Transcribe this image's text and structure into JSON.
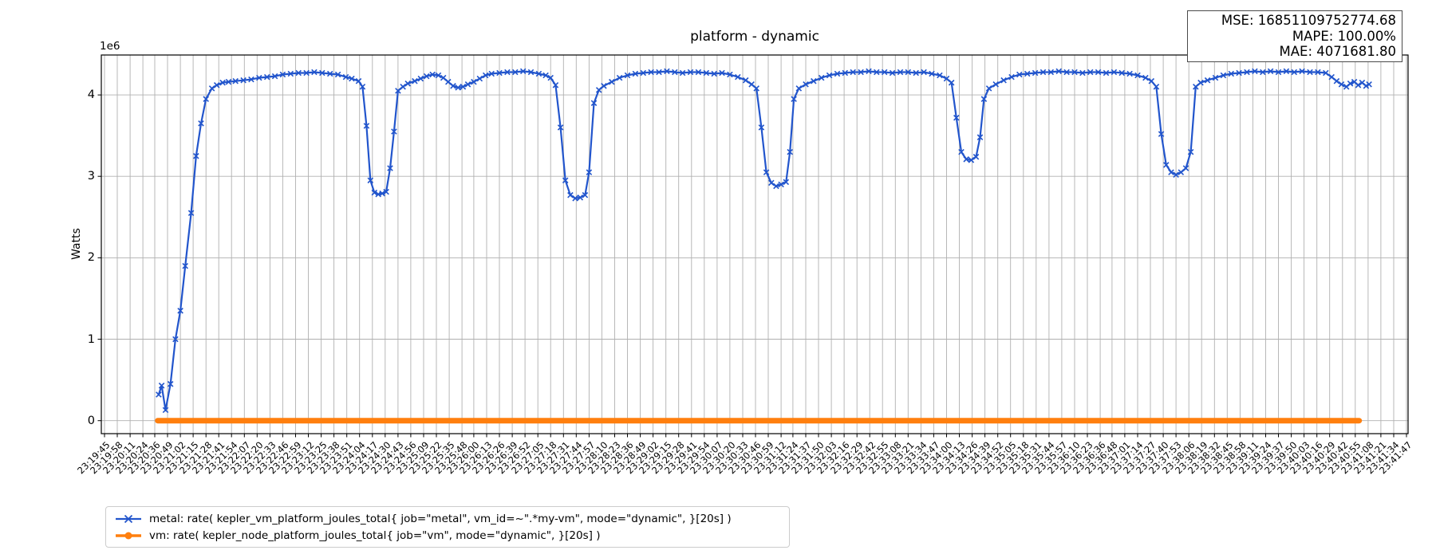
{
  "figure": {
    "title": "platform - dynamic"
  },
  "stats_box": {
    "lines": [
      "MSE: 16851109752774.68",
      "MAPE: 100.00%",
      "MAE: 4071681.80"
    ]
  },
  "legend": {
    "entries": [
      {
        "label": "metal: rate( kepler_vm_platform_joules_total{ job=\"metal\", vm_id=~\".*my-vm\", mode=\"dynamic\", }[20s] )",
        "color": "#2255cc",
        "marker": "x"
      },
      {
        "label": "vm: rate( kepler_node_platform_joules_total{ job=\"vm\", mode=\"dynamic\", }[20s] )",
        "color": "#ff7f0e",
        "marker": "circle"
      }
    ]
  },
  "chart_data": {
    "type": "line",
    "title": "platform - dynamic",
    "xlabel": "",
    "ylabel": "Watts",
    "y_offset_text": "1e6",
    "y_ticks": [
      0,
      1,
      2,
      3,
      4
    ],
    "ylim": [
      -160000,
      4490000
    ],
    "grid": true,
    "legend_position": "below-left",
    "x_unit": "time of day (HH:MM:SS), seconds measured from first tick 23:19:45",
    "x_tick_labels": [
      "23:19:45",
      "23:19:58",
      "23:20:11",
      "23:20:24",
      "23:20:36",
      "23:20:49",
      "23:21:02",
      "23:21:15",
      "23:21:28",
      "23:21:41",
      "23:21:54",
      "23:22:07",
      "23:22:20",
      "23:22:33",
      "23:22:46",
      "23:22:59",
      "23:23:12",
      "23:23:25",
      "23:23:38",
      "23:23:51",
      "23:24:04",
      "23:24:17",
      "23:24:30",
      "23:24:43",
      "23:24:56",
      "23:25:09",
      "23:25:22",
      "23:25:35",
      "23:25:48",
      "23:26:00",
      "23:26:13",
      "23:26:26",
      "23:26:39",
      "23:26:52",
      "23:27:05",
      "23:27:18",
      "23:27:31",
      "23:27:44",
      "23:27:57",
      "23:28:10",
      "23:28:23",
      "23:28:36",
      "23:28:49",
      "23:29:02",
      "23:29:15",
      "23:29:28",
      "23:29:41",
      "23:29:54",
      "23:30:07",
      "23:30:20",
      "23:30:33",
      "23:30:46",
      "23:30:59",
      "23:31:12",
      "23:31:24",
      "23:31:37",
      "23:31:50",
      "23:32:03",
      "23:32:16",
      "23:32:29",
      "23:32:42",
      "23:32:55",
      "23:33:08",
      "23:33:21",
      "23:33:34",
      "23:33:47",
      "23:34:00",
      "23:34:13",
      "23:34:26",
      "23:34:39",
      "23:34:52",
      "23:35:05",
      "23:35:18",
      "23:35:31",
      "23:35:44",
      "23:35:57",
      "23:36:10",
      "23:36:23",
      "23:36:36",
      "23:36:48",
      "23:37:01",
      "23:37:14",
      "23:37:27",
      "23:37:40",
      "23:37:53",
      "23:38:06",
      "23:38:19",
      "23:38:32",
      "23:38:45",
      "23:38:58",
      "23:39:11",
      "23:39:24",
      "23:39:37",
      "23:39:50",
      "23:40:03",
      "23:40:16",
      "23:40:29",
      "23:40:42",
      "23:40:55",
      "23:41:08",
      "23:41:21",
      "23:41:34",
      "23:41:47"
    ],
    "series": [
      {
        "name": "metal",
        "color": "#2255cc",
        "marker": "x",
        "linewidth": 2.2,
        "points": [
          [
            55,
            320000
          ],
          [
            58,
            430000
          ],
          [
            62,
            130000
          ],
          [
            67,
            450000
          ],
          [
            72,
            1000000
          ],
          [
            77,
            1350000
          ],
          [
            82,
            1900000
          ],
          [
            88,
            2550000
          ],
          [
            93,
            3250000
          ],
          [
            98,
            3650000
          ],
          [
            103,
            3950000
          ],
          [
            109,
            4080000
          ],
          [
            114,
            4120000
          ],
          [
            120,
            4150000
          ],
          [
            126,
            4160000
          ],
          [
            133,
            4170000
          ],
          [
            141,
            4180000
          ],
          [
            149,
            4190000
          ],
          [
            157,
            4210000
          ],
          [
            165,
            4220000
          ],
          [
            173,
            4230000
          ],
          [
            181,
            4250000
          ],
          [
            189,
            4260000
          ],
          [
            197,
            4270000
          ],
          [
            205,
            4270000
          ],
          [
            213,
            4280000
          ],
          [
            221,
            4270000
          ],
          [
            229,
            4260000
          ],
          [
            237,
            4250000
          ],
          [
            245,
            4220000
          ],
          [
            251,
            4200000
          ],
          [
            258,
            4170000
          ],
          [
            262,
            4100000
          ],
          [
            266,
            3620000
          ],
          [
            270,
            2950000
          ],
          [
            274,
            2800000
          ],
          [
            278,
            2780000
          ],
          [
            282,
            2790000
          ],
          [
            286,
            2810000
          ],
          [
            290,
            3100000
          ],
          [
            294,
            3550000
          ],
          [
            298,
            4050000
          ],
          [
            303,
            4100000
          ],
          [
            308,
            4140000
          ],
          [
            315,
            4170000
          ],
          [
            321,
            4200000
          ],
          [
            327,
            4230000
          ],
          [
            333,
            4250000
          ],
          [
            339,
            4240000
          ],
          [
            344,
            4210000
          ],
          [
            349,
            4160000
          ],
          [
            354,
            4110000
          ],
          [
            359,
            4090000
          ],
          [
            364,
            4100000
          ],
          [
            369,
            4130000
          ],
          [
            375,
            4160000
          ],
          [
            381,
            4200000
          ],
          [
            387,
            4240000
          ],
          [
            393,
            4260000
          ],
          [
            401,
            4270000
          ],
          [
            409,
            4280000
          ],
          [
            417,
            4280000
          ],
          [
            425,
            4290000
          ],
          [
            433,
            4280000
          ],
          [
            441,
            4260000
          ],
          [
            448,
            4240000
          ],
          [
            453,
            4210000
          ],
          [
            458,
            4120000
          ],
          [
            463,
            3600000
          ],
          [
            468,
            2950000
          ],
          [
            473,
            2770000
          ],
          [
            478,
            2730000
          ],
          [
            483,
            2740000
          ],
          [
            488,
            2770000
          ],
          [
            492,
            3050000
          ],
          [
            497,
            3900000
          ],
          [
            502,
            4060000
          ],
          [
            507,
            4110000
          ],
          [
            515,
            4160000
          ],
          [
            523,
            4210000
          ],
          [
            531,
            4240000
          ],
          [
            539,
            4260000
          ],
          [
            547,
            4270000
          ],
          [
            555,
            4280000
          ],
          [
            563,
            4280000
          ],
          [
            571,
            4290000
          ],
          [
            579,
            4280000
          ],
          [
            587,
            4270000
          ],
          [
            595,
            4280000
          ],
          [
            603,
            4280000
          ],
          [
            611,
            4270000
          ],
          [
            619,
            4260000
          ],
          [
            627,
            4270000
          ],
          [
            635,
            4250000
          ],
          [
            643,
            4220000
          ],
          [
            651,
            4180000
          ],
          [
            657,
            4130000
          ],
          [
            662,
            4080000
          ],
          [
            667,
            3600000
          ],
          [
            672,
            3050000
          ],
          [
            677,
            2920000
          ],
          [
            682,
            2880000
          ],
          [
            687,
            2900000
          ],
          [
            692,
            2930000
          ],
          [
            696,
            3300000
          ],
          [
            700,
            3950000
          ],
          [
            705,
            4080000
          ],
          [
            712,
            4130000
          ],
          [
            720,
            4170000
          ],
          [
            728,
            4210000
          ],
          [
            736,
            4240000
          ],
          [
            744,
            4260000
          ],
          [
            752,
            4270000
          ],
          [
            760,
            4280000
          ],
          [
            768,
            4280000
          ],
          [
            776,
            4290000
          ],
          [
            784,
            4280000
          ],
          [
            792,
            4280000
          ],
          [
            800,
            4270000
          ],
          [
            808,
            4280000
          ],
          [
            816,
            4280000
          ],
          [
            824,
            4270000
          ],
          [
            832,
            4280000
          ],
          [
            840,
            4260000
          ],
          [
            848,
            4240000
          ],
          [
            855,
            4200000
          ],
          [
            860,
            4150000
          ],
          [
            865,
            3720000
          ],
          [
            870,
            3300000
          ],
          [
            875,
            3210000
          ],
          [
            880,
            3200000
          ],
          [
            885,
            3240000
          ],
          [
            889,
            3480000
          ],
          [
            893,
            3950000
          ],
          [
            898,
            4080000
          ],
          [
            905,
            4130000
          ],
          [
            913,
            4180000
          ],
          [
            921,
            4220000
          ],
          [
            929,
            4250000
          ],
          [
            937,
            4260000
          ],
          [
            945,
            4270000
          ],
          [
            953,
            4280000
          ],
          [
            961,
            4280000
          ],
          [
            969,
            4290000
          ],
          [
            977,
            4280000
          ],
          [
            985,
            4280000
          ],
          [
            993,
            4270000
          ],
          [
            1001,
            4280000
          ],
          [
            1009,
            4280000
          ],
          [
            1017,
            4270000
          ],
          [
            1025,
            4280000
          ],
          [
            1033,
            4270000
          ],
          [
            1041,
            4260000
          ],
          [
            1049,
            4240000
          ],
          [
            1057,
            4210000
          ],
          [
            1063,
            4170000
          ],
          [
            1068,
            4100000
          ],
          [
            1073,
            3520000
          ],
          [
            1078,
            3140000
          ],
          [
            1083,
            3050000
          ],
          [
            1088,
            3020000
          ],
          [
            1093,
            3050000
          ],
          [
            1098,
            3100000
          ],
          [
            1103,
            3300000
          ],
          [
            1108,
            4100000
          ],
          [
            1113,
            4150000
          ],
          [
            1120,
            4180000
          ],
          [
            1128,
            4210000
          ],
          [
            1136,
            4240000
          ],
          [
            1144,
            4260000
          ],
          [
            1152,
            4270000
          ],
          [
            1160,
            4280000
          ],
          [
            1168,
            4290000
          ],
          [
            1176,
            4280000
          ],
          [
            1184,
            4290000
          ],
          [
            1192,
            4280000
          ],
          [
            1200,
            4290000
          ],
          [
            1208,
            4280000
          ],
          [
            1216,
            4290000
          ],
          [
            1224,
            4280000
          ],
          [
            1232,
            4280000
          ],
          [
            1240,
            4270000
          ],
          [
            1246,
            4220000
          ],
          [
            1251,
            4170000
          ],
          [
            1256,
            4130000
          ],
          [
            1261,
            4100000
          ],
          [
            1265,
            4140000
          ],
          [
            1269,
            4160000
          ],
          [
            1273,
            4120000
          ],
          [
            1277,
            4150000
          ],
          [
            1281,
            4110000
          ],
          [
            1284,
            4130000
          ]
        ]
      },
      {
        "name": "vm",
        "color": "#ff7f0e",
        "marker": "circle",
        "linewidth": 7,
        "points": [
          [
            54,
            0
          ],
          [
            1274,
            0
          ]
        ]
      }
    ]
  }
}
